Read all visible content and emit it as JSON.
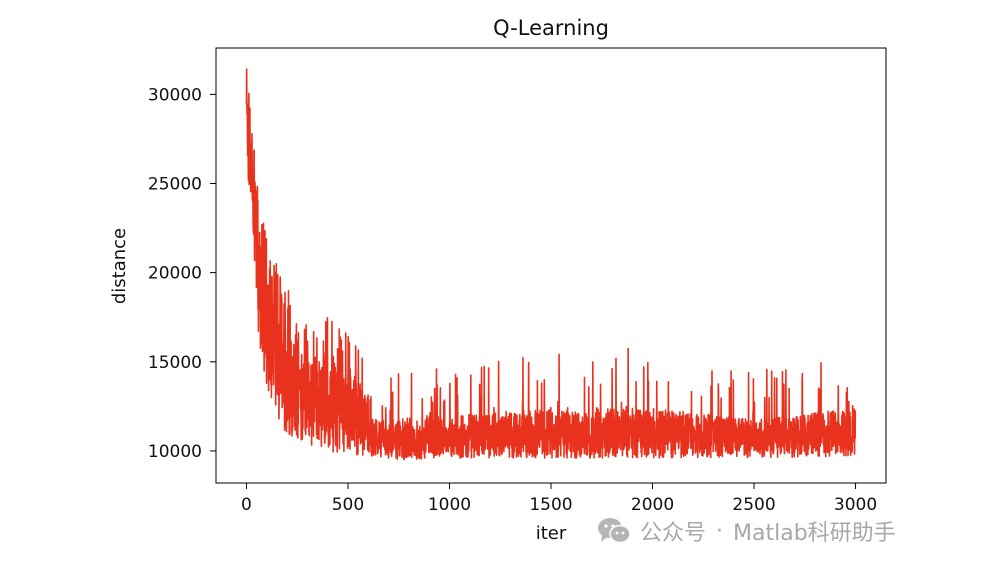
{
  "chart_data": {
    "type": "line",
    "title": "Q-Learning",
    "xlabel": "iter",
    "ylabel": "distance",
    "xlim": [
      -150,
      3150
    ],
    "ylim": [
      8200,
      32600
    ],
    "xticks": [
      0,
      500,
      1000,
      1500,
      2000,
      2500,
      3000
    ],
    "xtick_labels": [
      "0",
      "500",
      "1000",
      "1500",
      "2000",
      "2500",
      "3000"
    ],
    "yticks": [
      10000,
      15000,
      20000,
      25000,
      30000
    ],
    "ytick_labels": [
      "10000",
      "15000",
      "20000",
      "25000",
      "30000"
    ],
    "grid": false,
    "legend": "none",
    "series": [
      {
        "color": "#e8321e",
        "n_points": 3000,
        "envelope": {
          "x": [
            0,
            10,
            25,
            50,
            75,
            100,
            150,
            200,
            300,
            400,
            500,
            600,
            700,
            800,
            1000,
            1500,
            2000,
            2500,
            3000
          ],
          "max": [
            32100,
            30800,
            28600,
            25300,
            23600,
            22000,
            20500,
            19500,
            17500,
            17600,
            17000,
            14500,
            14400,
            14800,
            14800,
            15900,
            15800,
            14400,
            15800
          ],
          "min": [
            26400,
            24200,
            24000,
            17600,
            15000,
            13200,
            12000,
            10900,
            10400,
            10000,
            9800,
            9700,
            9500,
            9500,
            9600,
            9600,
            9600,
            9600,
            9700
          ]
        }
      }
    ]
  },
  "watermark": {
    "icon": "wechat-icon",
    "text": "公众号",
    "separator": "·",
    "account": "Matlab科研助手"
  }
}
